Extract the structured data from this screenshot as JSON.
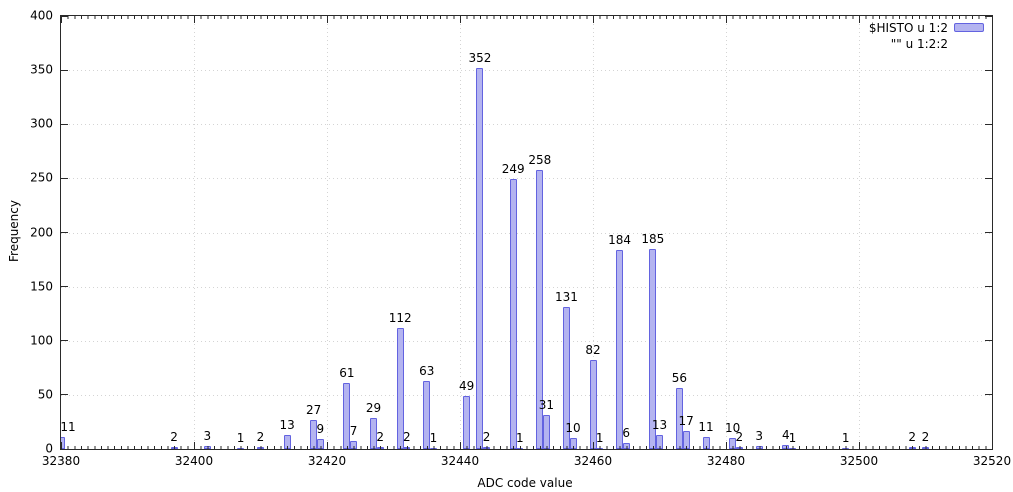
{
  "axes": {
    "x_label": "ADC code value",
    "y_label": "Frequency"
  },
  "legend": {
    "entries": [
      {
        "label": "$HISTO u 1:2",
        "swatch": true
      },
      {
        "label": "\"\" u 1:2:2",
        "swatch": false
      }
    ]
  },
  "colors": {
    "bar_fill": "#b4b4f0",
    "bar_border": "#6363e0",
    "grid": "#d4d4d4",
    "axis": "#2a2a2a",
    "text": "#000000"
  },
  "chart_data": {
    "type": "bar",
    "title": "",
    "xlabel": "ADC code value",
    "ylabel": "Frequency",
    "xlim": [
      32380,
      32520
    ],
    "ylim": [
      0,
      400
    ],
    "x_ticks": [
      32380,
      32400,
      32420,
      32440,
      32460,
      32480,
      32500,
      32520
    ],
    "y_ticks": [
      0,
      50,
      100,
      150,
      200,
      250,
      300,
      350,
      400
    ],
    "x_minor_tick_step": 1,
    "grid": true,
    "legend_position": "top-right",
    "series_name": "$HISTO u 1:2",
    "labels_series_name": "\"\" u 1:2:2",
    "bar_width_units": 1,
    "labels_above_bars": true,
    "x": [
      32380,
      32397,
      32402,
      32407,
      32410,
      32414,
      32418,
      32419,
      32423,
      32424,
      32427,
      32428,
      32431,
      32432,
      32435,
      32436,
      32441,
      32443,
      32444,
      32448,
      32449,
      32452,
      32453,
      32456,
      32457,
      32460,
      32461,
      32464,
      32465,
      32469,
      32470,
      32473,
      32474,
      32477,
      32481,
      32482,
      32485,
      32489,
      32490,
      32498,
      32508,
      32510
    ],
    "values": [
      11,
      2,
      3,
      1,
      2,
      13,
      27,
      9,
      61,
      7,
      29,
      2,
      112,
      2,
      63,
      1,
      49,
      352,
      2,
      249,
      1,
      258,
      31,
      131,
      10,
      82,
      1,
      184,
      6,
      185,
      13,
      56,
      17,
      11,
      10,
      2,
      3,
      4,
      1,
      1,
      2,
      2
    ]
  }
}
